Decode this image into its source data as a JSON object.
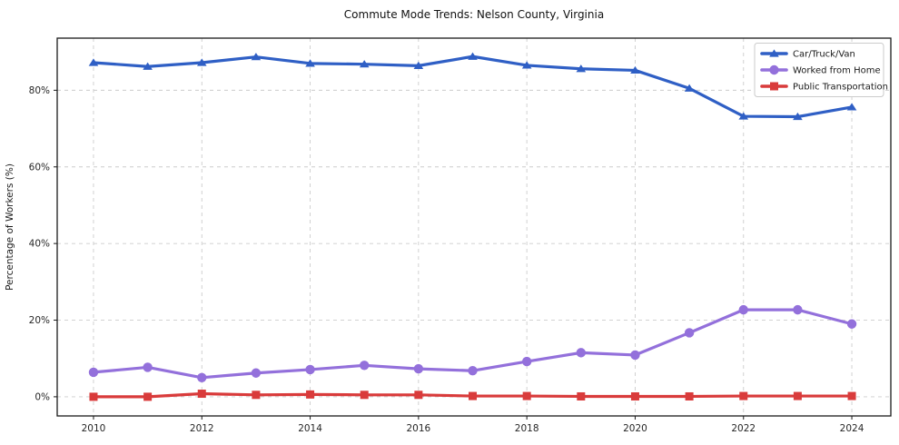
{
  "figure": {
    "background": "#ffffff"
  },
  "chart_data": {
    "type": "line",
    "title": "Commute Mode Trends: Nelson County, Virginia",
    "xlabel": "",
    "ylabel": "Percentage of Workers (%)",
    "x": [
      2010,
      2011,
      2012,
      2013,
      2014,
      2015,
      2016,
      2017,
      2018,
      2019,
      2020,
      2021,
      2022,
      2023,
      2024
    ],
    "series": [
      {
        "name": "Car/Truck/Van",
        "color": "#2f5fc5",
        "marker": "triangle",
        "values": [
          87.2,
          86.2,
          87.2,
          88.7,
          87.0,
          86.8,
          86.4,
          88.8,
          86.5,
          85.6,
          85.2,
          80.5,
          73.2,
          73.1,
          75.6
        ]
      },
      {
        "name": "Worked from Home",
        "color": "#9370db",
        "marker": "circle",
        "values": [
          6.4,
          7.7,
          5.0,
          6.2,
          7.1,
          8.2,
          7.3,
          6.8,
          9.2,
          11.5,
          10.9,
          16.7,
          22.7,
          22.7,
          19.0
        ]
      },
      {
        "name": "Public Transportation",
        "color": "#d93b3b",
        "marker": "square",
        "values": [
          0.0,
          0.0,
          0.8,
          0.5,
          0.6,
          0.5,
          0.5,
          0.2,
          0.2,
          0.1,
          0.1,
          0.1,
          0.2,
          0.2,
          0.2
        ]
      }
    ],
    "x_ticks": [
      2010,
      2012,
      2014,
      2016,
      2018,
      2020,
      2022,
      2024
    ],
    "x_tick_labels": [
      "2010",
      "2012",
      "2014",
      "2016",
      "2018",
      "2020",
      "2022",
      "2024"
    ],
    "y_ticks": [
      0,
      20,
      40,
      60,
      80
    ],
    "y_tick_labels": [
      "0%",
      "20%",
      "40%",
      "60%",
      "80%"
    ],
    "xlim": [
      2009.33,
      2024.72
    ],
    "ylim": [
      -5.0,
      93.6
    ],
    "grid": true,
    "grid_style": "dashed",
    "legend_position": "upper right"
  },
  "style": {
    "grid_color": "#cccccc",
    "frame_color": "#1a1a1a",
    "legend_bg": "#ffffff",
    "legend_border": "#cbcbcb",
    "line_width": 3.2,
    "accent_blue": "#2f5fc5",
    "accent_purple": "#9370db",
    "accent_red": "#d93b3b"
  }
}
